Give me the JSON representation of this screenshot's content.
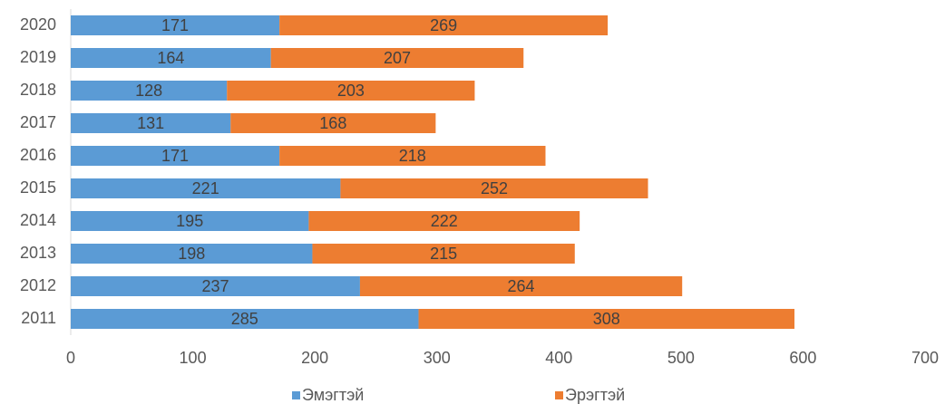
{
  "chart_data": {
    "type": "stacked-barh",
    "categories": [
      "2020",
      "2019",
      "2018",
      "2017",
      "2016",
      "2015",
      "2014",
      "2013",
      "2012",
      "2011"
    ],
    "series": [
      {
        "name": "Эмэгтэй",
        "color": "#5b9bd5",
        "values": [
          171,
          164,
          128,
          131,
          171,
          221,
          195,
          198,
          237,
          285
        ]
      },
      {
        "name": "Эрэгтэй",
        "color": "#ed7d31",
        "values": [
          269,
          207,
          203,
          168,
          218,
          252,
          222,
          215,
          264,
          308
        ]
      }
    ],
    "xlim": [
      0,
      700
    ],
    "xticks": [
      0,
      100,
      200,
      300,
      400,
      500,
      600,
      700
    ],
    "legend": "bottom"
  }
}
